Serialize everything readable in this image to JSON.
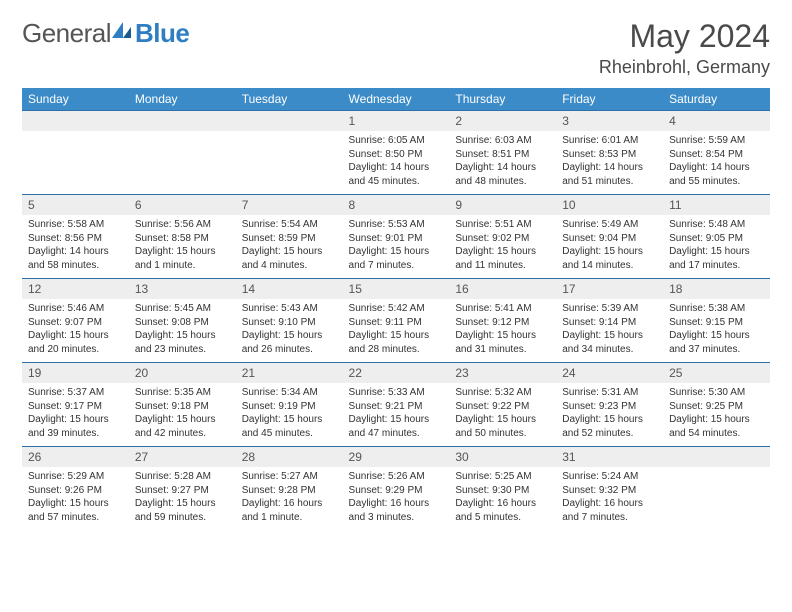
{
  "logo": {
    "general": "General",
    "blue": "Blue"
  },
  "title": "May 2024",
  "location": "Rheinbrohl, Germany",
  "header_bg": "#3b8bc8",
  "daynum_bg": "#eeeeee",
  "rule_color": "#2f6fa8",
  "weekdays": [
    "Sunday",
    "Monday",
    "Tuesday",
    "Wednesday",
    "Thursday",
    "Friday",
    "Saturday"
  ],
  "weeks": [
    [
      null,
      null,
      null,
      {
        "n": "1",
        "sr": "6:05 AM",
        "ss": "8:50 PM",
        "dl": "14 hours and 45 minutes."
      },
      {
        "n": "2",
        "sr": "6:03 AM",
        "ss": "8:51 PM",
        "dl": "14 hours and 48 minutes."
      },
      {
        "n": "3",
        "sr": "6:01 AM",
        "ss": "8:53 PM",
        "dl": "14 hours and 51 minutes."
      },
      {
        "n": "4",
        "sr": "5:59 AM",
        "ss": "8:54 PM",
        "dl": "14 hours and 55 minutes."
      }
    ],
    [
      {
        "n": "5",
        "sr": "5:58 AM",
        "ss": "8:56 PM",
        "dl": "14 hours and 58 minutes."
      },
      {
        "n": "6",
        "sr": "5:56 AM",
        "ss": "8:58 PM",
        "dl": "15 hours and 1 minute."
      },
      {
        "n": "7",
        "sr": "5:54 AM",
        "ss": "8:59 PM",
        "dl": "15 hours and 4 minutes."
      },
      {
        "n": "8",
        "sr": "5:53 AM",
        "ss": "9:01 PM",
        "dl": "15 hours and 7 minutes."
      },
      {
        "n": "9",
        "sr": "5:51 AM",
        "ss": "9:02 PM",
        "dl": "15 hours and 11 minutes."
      },
      {
        "n": "10",
        "sr": "5:49 AM",
        "ss": "9:04 PM",
        "dl": "15 hours and 14 minutes."
      },
      {
        "n": "11",
        "sr": "5:48 AM",
        "ss": "9:05 PM",
        "dl": "15 hours and 17 minutes."
      }
    ],
    [
      {
        "n": "12",
        "sr": "5:46 AM",
        "ss": "9:07 PM",
        "dl": "15 hours and 20 minutes."
      },
      {
        "n": "13",
        "sr": "5:45 AM",
        "ss": "9:08 PM",
        "dl": "15 hours and 23 minutes."
      },
      {
        "n": "14",
        "sr": "5:43 AM",
        "ss": "9:10 PM",
        "dl": "15 hours and 26 minutes."
      },
      {
        "n": "15",
        "sr": "5:42 AM",
        "ss": "9:11 PM",
        "dl": "15 hours and 28 minutes."
      },
      {
        "n": "16",
        "sr": "5:41 AM",
        "ss": "9:12 PM",
        "dl": "15 hours and 31 minutes."
      },
      {
        "n": "17",
        "sr": "5:39 AM",
        "ss": "9:14 PM",
        "dl": "15 hours and 34 minutes."
      },
      {
        "n": "18",
        "sr": "5:38 AM",
        "ss": "9:15 PM",
        "dl": "15 hours and 37 minutes."
      }
    ],
    [
      {
        "n": "19",
        "sr": "5:37 AM",
        "ss": "9:17 PM",
        "dl": "15 hours and 39 minutes."
      },
      {
        "n": "20",
        "sr": "5:35 AM",
        "ss": "9:18 PM",
        "dl": "15 hours and 42 minutes."
      },
      {
        "n": "21",
        "sr": "5:34 AM",
        "ss": "9:19 PM",
        "dl": "15 hours and 45 minutes."
      },
      {
        "n": "22",
        "sr": "5:33 AM",
        "ss": "9:21 PM",
        "dl": "15 hours and 47 minutes."
      },
      {
        "n": "23",
        "sr": "5:32 AM",
        "ss": "9:22 PM",
        "dl": "15 hours and 50 minutes."
      },
      {
        "n": "24",
        "sr": "5:31 AM",
        "ss": "9:23 PM",
        "dl": "15 hours and 52 minutes."
      },
      {
        "n": "25",
        "sr": "5:30 AM",
        "ss": "9:25 PM",
        "dl": "15 hours and 54 minutes."
      }
    ],
    [
      {
        "n": "26",
        "sr": "5:29 AM",
        "ss": "9:26 PM",
        "dl": "15 hours and 57 minutes."
      },
      {
        "n": "27",
        "sr": "5:28 AM",
        "ss": "9:27 PM",
        "dl": "15 hours and 59 minutes."
      },
      {
        "n": "28",
        "sr": "5:27 AM",
        "ss": "9:28 PM",
        "dl": "16 hours and 1 minute."
      },
      {
        "n": "29",
        "sr": "5:26 AM",
        "ss": "9:29 PM",
        "dl": "16 hours and 3 minutes."
      },
      {
        "n": "30",
        "sr": "5:25 AM",
        "ss": "9:30 PM",
        "dl": "16 hours and 5 minutes."
      },
      {
        "n": "31",
        "sr": "5:24 AM",
        "ss": "9:32 PM",
        "dl": "16 hours and 7 minutes."
      },
      null
    ]
  ],
  "labels": {
    "sunrise": "Sunrise:",
    "sunset": "Sunset:",
    "daylight": "Daylight:"
  }
}
